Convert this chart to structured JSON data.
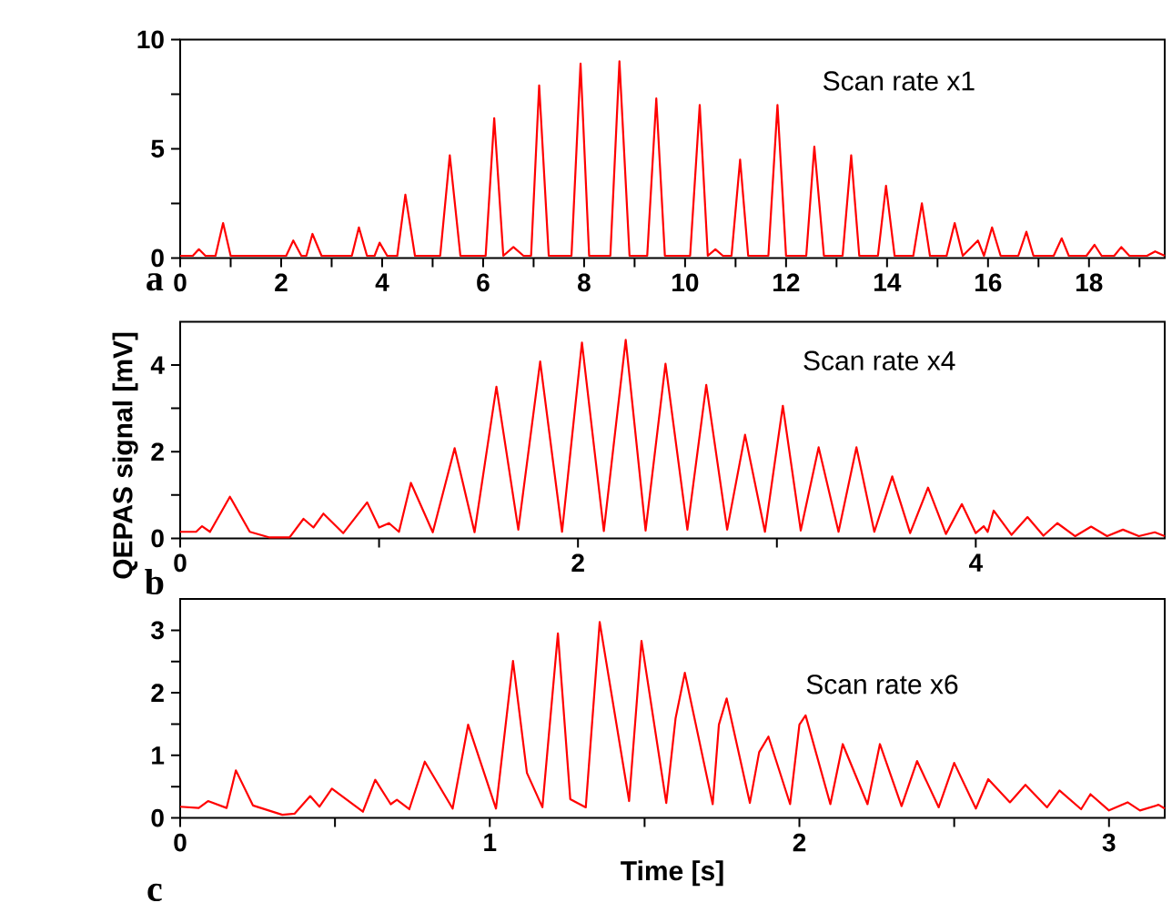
{
  "chart_data": [
    {
      "type": "line",
      "color": "#ff0000",
      "xlim": [
        0,
        19.5
      ],
      "ylim": [
        0,
        10
      ],
      "xticks": [
        0,
        {
          "value": 1,
          "label": null
        },
        2,
        {
          "value": 3,
          "label": null
        },
        4,
        {
          "value": 5,
          "label": null
        },
        6,
        {
          "value": 7,
          "label": null
        },
        8,
        {
          "value": 9,
          "label": null
        },
        10,
        {
          "value": 11,
          "label": null
        },
        12,
        {
          "value": 13,
          "label": null
        },
        14,
        {
          "value": 15,
          "label": null
        },
        16,
        {
          "value": 17,
          "label": null
        },
        18,
        {
          "value": 19,
          "label": null
        }
      ],
      "yticks": [
        0,
        {
          "value": 2.5,
          "label": null
        },
        5,
        {
          "value": 7.5,
          "label": null
        },
        10
      ],
      "annotations": [
        "Scan rate x1",
        "a"
      ],
      "x": [
        0,
        0.25,
        0.37,
        0.5,
        0.7,
        0.85,
        1.0,
        2.1,
        2.24,
        2.4,
        2.5,
        2.62,
        2.8,
        3.4,
        3.54,
        3.7,
        3.85,
        3.95,
        4.1,
        4.3,
        4.46,
        4.65,
        5.15,
        5.34,
        5.55,
        6.05,
        6.22,
        6.4,
        6.6,
        6.8,
        6.95,
        7.11,
        7.3,
        7.75,
        7.93,
        8.1,
        8.52,
        8.7,
        8.9,
        9.25,
        9.43,
        9.6,
        10.1,
        10.29,
        10.45,
        10.6,
        10.75,
        10.92,
        11.09,
        11.25,
        11.65,
        11.83,
        12.0,
        12.4,
        12.56,
        12.75,
        13.12,
        13.29,
        13.45,
        13.82,
        13.98,
        14.15,
        14.52,
        14.69,
        14.85,
        15.18,
        15.34,
        15.5,
        15.8,
        15.92,
        16.08,
        16.25,
        16.6,
        16.76,
        16.9,
        17.3,
        17.46,
        17.6,
        17.95,
        18.11,
        18.25,
        18.5,
        18.64,
        18.8,
        19.15,
        19.31,
        19.5
      ],
      "values": [
        0.1,
        0.1,
        0.4,
        0.1,
        0.1,
        1.6,
        0.1,
        0.1,
        0.8,
        0.1,
        0.1,
        1.1,
        0.1,
        0.1,
        1.4,
        0.1,
        0.1,
        0.7,
        0.1,
        0.1,
        2.9,
        0.1,
        0.1,
        4.7,
        0.1,
        0.1,
        6.4,
        0.1,
        0.5,
        0.1,
        0.1,
        7.9,
        0.1,
        0.1,
        8.9,
        0.1,
        0.1,
        9.0,
        0.1,
        0.1,
        7.3,
        0.1,
        0.1,
        7.0,
        0.1,
        0.4,
        0.1,
        0.1,
        4.5,
        0.1,
        0.1,
        7.0,
        0.1,
        0.1,
        5.1,
        0.1,
        0.1,
        4.7,
        0.1,
        0.1,
        3.3,
        0.1,
        0.1,
        2.5,
        0.1,
        0.1,
        1.6,
        0.1,
        0.8,
        0.1,
        1.4,
        0.1,
        0.1,
        1.2,
        0.1,
        0.1,
        0.9,
        0.1,
        0.1,
        0.6,
        0.1,
        0.1,
        0.5,
        0.1,
        0.1,
        0.3,
        0.1
      ]
    },
    {
      "type": "line",
      "color": "#ff0000",
      "xlim": [
        0,
        4.95
      ],
      "ylim": [
        0,
        5
      ],
      "ylabel": "QEPAS signal [mV]",
      "xticks": [
        0,
        {
          "value": 1,
          "label": null
        },
        2,
        {
          "value": 3,
          "label": null
        },
        4
      ],
      "yticks": [
        0,
        {
          "value": 1,
          "label": null
        },
        2,
        {
          "value": 3,
          "label": null
        },
        4
      ],
      "annotations": [
        "Scan rate x4",
        "b"
      ],
      "x": [
        0,
        0.08,
        0.11,
        0.15,
        0.25,
        0.35,
        0.45,
        0.55,
        0.62,
        0.67,
        0.72,
        0.82,
        0.94,
        1.0,
        1.05,
        1.1,
        1.16,
        1.27,
        1.38,
        1.48,
        1.59,
        1.7,
        1.81,
        1.92,
        2.02,
        2.13,
        2.24,
        2.34,
        2.44,
        2.55,
        2.645,
        2.75,
        2.84,
        2.94,
        3.03,
        3.12,
        3.21,
        3.31,
        3.4,
        3.49,
        3.58,
        3.67,
        3.76,
        3.85,
        3.93,
        4.0,
        4.04,
        4.06,
        4.09,
        4.18,
        4.26,
        4.34,
        4.41,
        4.5,
        4.58,
        4.66,
        4.74,
        4.82,
        4.9,
        4.95
      ],
      "values": [
        0.15,
        0.15,
        0.28,
        0.15,
        0.96,
        0.15,
        0.02,
        0.02,
        0.45,
        0.25,
        0.57,
        0.12,
        0.83,
        0.25,
        0.35,
        0.15,
        1.28,
        0.14,
        2.08,
        0.14,
        3.5,
        0.2,
        4.08,
        0.15,
        4.52,
        0.17,
        4.58,
        0.18,
        4.03,
        0.2,
        3.54,
        0.2,
        2.39,
        0.15,
        3.06,
        0.18,
        2.1,
        0.15,
        2.1,
        0.15,
        1.43,
        0.12,
        1.17,
        0.1,
        0.79,
        0.12,
        0.28,
        0.15,
        0.64,
        0.08,
        0.49,
        0.06,
        0.35,
        0.05,
        0.27,
        0.05,
        0.2,
        0.05,
        0.14,
        0.05
      ]
    },
    {
      "type": "line",
      "color": "#ff0000",
      "xlim": [
        0,
        3.18
      ],
      "ylim": [
        0,
        3.5
      ],
      "xlabel": "Time [s]",
      "xticks": [
        0,
        {
          "value": 0.5,
          "label": null
        },
        1,
        {
          "value": 1.5,
          "label": null
        },
        2,
        {
          "value": 2.5,
          "label": null
        },
        3
      ],
      "yticks": [
        0,
        {
          "value": 0.5,
          "label": null
        },
        1,
        {
          "value": 1.5,
          "label": null
        },
        2,
        {
          "value": 2.5,
          "label": null
        },
        3
      ],
      "annotations": [
        "Scan rate x6",
        "c"
      ],
      "x": [
        0,
        0.06,
        0.09,
        0.15,
        0.18,
        0.235,
        0.33,
        0.37,
        0.42,
        0.45,
        0.49,
        0.59,
        0.63,
        0.68,
        0.7,
        0.74,
        0.79,
        0.88,
        0.93,
        1.02,
        1.075,
        1.12,
        1.17,
        1.22,
        1.26,
        1.31,
        1.355,
        1.45,
        1.49,
        1.57,
        1.6,
        1.63,
        1.72,
        1.74,
        1.765,
        1.84,
        1.87,
        1.9,
        1.97,
        2.0,
        2.02,
        2.1,
        2.14,
        2.22,
        2.26,
        2.33,
        2.38,
        2.45,
        2.5,
        2.57,
        2.61,
        2.68,
        2.73,
        2.8,
        2.84,
        2.91,
        2.94,
        3.0,
        3.06,
        3.1,
        3.16,
        3.18
      ],
      "values": [
        0.18,
        0.16,
        0.27,
        0.16,
        0.76,
        0.2,
        0.05,
        0.07,
        0.35,
        0.18,
        0.47,
        0.1,
        0.61,
        0.22,
        0.29,
        0.14,
        0.9,
        0.15,
        1.49,
        0.15,
        2.51,
        0.72,
        0.17,
        2.95,
        0.3,
        0.17,
        3.13,
        0.27,
        2.83,
        0.24,
        1.59,
        2.32,
        0.22,
        1.49,
        1.91,
        0.24,
        1.05,
        1.3,
        0.22,
        1.49,
        1.64,
        0.22,
        1.18,
        0.22,
        1.18,
        0.19,
        0.91,
        0.17,
        0.88,
        0.15,
        0.62,
        0.25,
        0.53,
        0.17,
        0.44,
        0.14,
        0.38,
        0.12,
        0.25,
        0.12,
        0.21,
        0.15
      ]
    }
  ]
}
